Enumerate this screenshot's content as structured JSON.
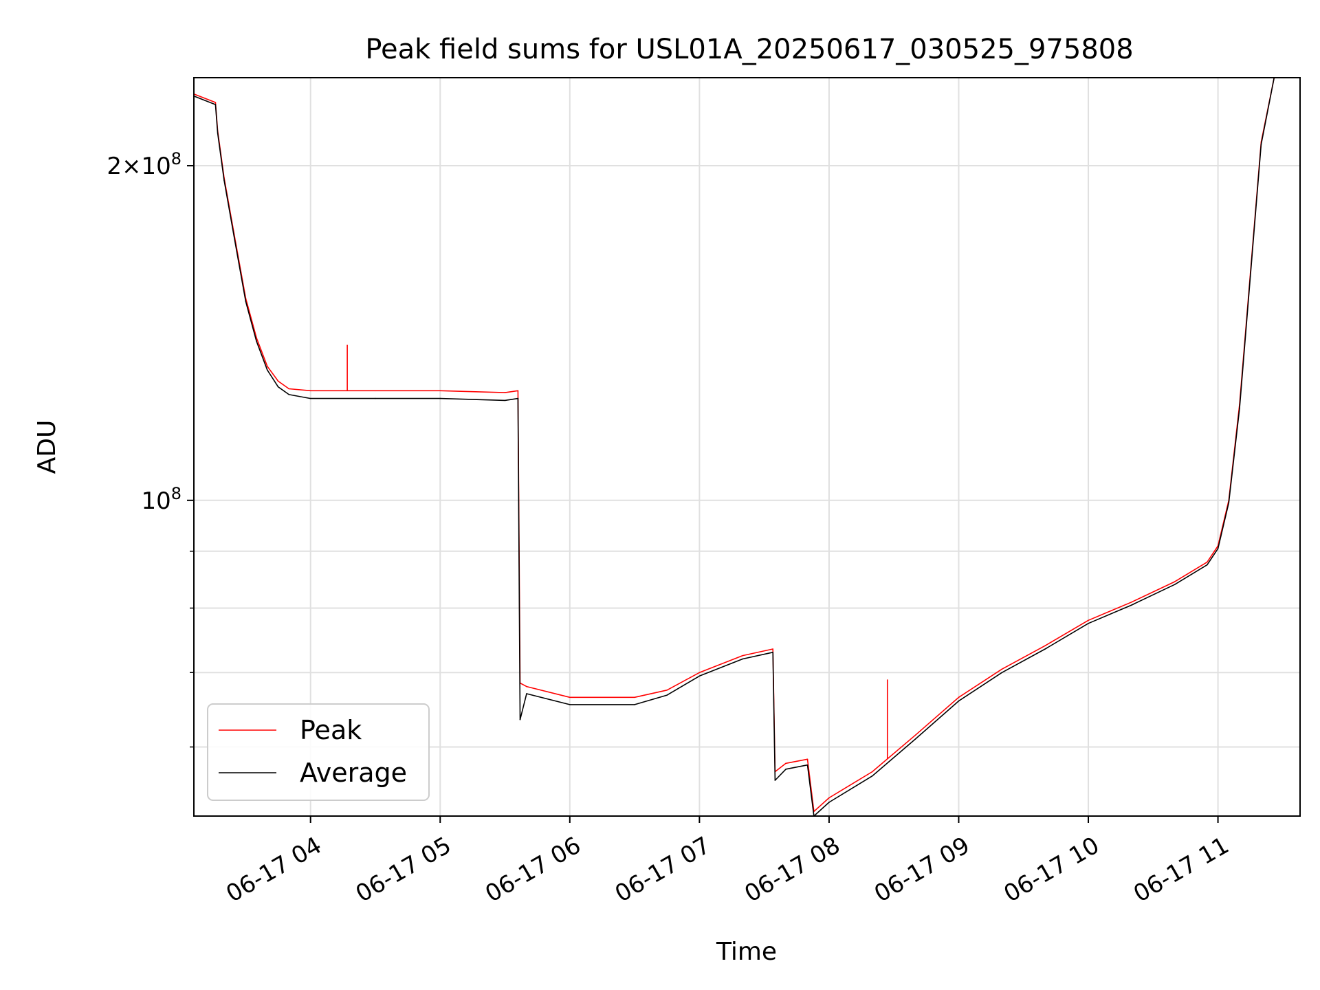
{
  "chart_data": {
    "type": "line",
    "title": "Peak field sums for USL01A_20250617_030525_975808",
    "xlabel": "Time",
    "ylabel": "ADU",
    "y_scale": "log",
    "ylim": [
      52000000,
      240000000
    ],
    "xlim": [
      "2025-06-17 03:06",
      "2025-06-17 11:38"
    ],
    "grid": true,
    "legend_position": "lower-left",
    "x_ticks": [
      {
        "t": "2025-06-17 04:00",
        "label": "06-17 04"
      },
      {
        "t": "2025-06-17 05:00",
        "label": "06-17 05"
      },
      {
        "t": "2025-06-17 06:00",
        "label": "06-17 06"
      },
      {
        "t": "2025-06-17 07:00",
        "label": "06-17 07"
      },
      {
        "t": "2025-06-17 08:00",
        "label": "06-17 08"
      },
      {
        "t": "2025-06-17 09:00",
        "label": "06-17 09"
      },
      {
        "t": "2025-06-17 10:00",
        "label": "06-17 10"
      },
      {
        "t": "2025-06-17 11:00",
        "label": "06-17 11"
      }
    ],
    "y_major_ticks": [
      {
        "value": 100000000,
        "base": "10",
        "exp": "8",
        "mult": ""
      },
      {
        "value": 200000000,
        "base": "10",
        "exp": "8",
        "mult": "2"
      }
    ],
    "y_minor_ticks": [
      60000000,
      70000000,
      80000000,
      90000000
    ],
    "series": [
      {
        "name": "Peak",
        "color": "#ff0000",
        "x": [
          "2025-06-17 03:06",
          "2025-06-17 03:16",
          "2025-06-17 03:17",
          "2025-06-17 03:20",
          "2025-06-17 03:25",
          "2025-06-17 03:30",
          "2025-06-17 03:35",
          "2025-06-17 03:40",
          "2025-06-17 03:45",
          "2025-06-17 03:50",
          "2025-06-17 04:00",
          "2025-06-17 04:30",
          "2025-06-17 05:00",
          "2025-06-17 05:30",
          "2025-06-17 05:36",
          "2025-06-17 05:37",
          "2025-06-17 05:40",
          "2025-06-17 06:00",
          "2025-06-17 06:30",
          "2025-06-17 06:45",
          "2025-06-17 07:00",
          "2025-06-17 07:20",
          "2025-06-17 07:34",
          "2025-06-17 07:35",
          "2025-06-17 07:40",
          "2025-06-17 07:50",
          "2025-06-17 07:53",
          "2025-06-17 08:00",
          "2025-06-17 08:20",
          "2025-06-17 08:40",
          "2025-06-17 09:00",
          "2025-06-17 09:20",
          "2025-06-17 09:40",
          "2025-06-17 10:00",
          "2025-06-17 10:20",
          "2025-06-17 10:40",
          "2025-06-17 10:55",
          "2025-06-17 11:00",
          "2025-06-17 11:05",
          "2025-06-17 11:10",
          "2025-06-17 11:15",
          "2025-06-17 11:20",
          "2025-06-17 11:26"
        ],
        "y": [
          232000000,
          228000000,
          215000000,
          195000000,
          172000000,
          152000000,
          140000000,
          132000000,
          128000000,
          126000000,
          125500000,
          125500000,
          125500000,
          125000000,
          125500000,
          68500000,
          68000000,
          66500000,
          66500000,
          67500000,
          70000000,
          72500000,
          73500000,
          57000000,
          58000000,
          58500000,
          52500000,
          54000000,
          57000000,
          61500000,
          66500000,
          70500000,
          74000000,
          78000000,
          81000000,
          84500000,
          88000000,
          91000000,
          100000000,
          122000000,
          160000000,
          210000000,
          240000000
        ]
      },
      {
        "name": "Average",
        "color": "#000000",
        "x": [
          "2025-06-17 03:06",
          "2025-06-17 03:16",
          "2025-06-17 03:17",
          "2025-06-17 03:20",
          "2025-06-17 03:25",
          "2025-06-17 03:30",
          "2025-06-17 03:35",
          "2025-06-17 03:40",
          "2025-06-17 03:45",
          "2025-06-17 03:50",
          "2025-06-17 04:00",
          "2025-06-17 04:30",
          "2025-06-17 05:00",
          "2025-06-17 05:30",
          "2025-06-17 05:36",
          "2025-06-17 05:37",
          "2025-06-17 05:40",
          "2025-06-17 06:00",
          "2025-06-17 06:30",
          "2025-06-17 06:45",
          "2025-06-17 07:00",
          "2025-06-17 07:20",
          "2025-06-17 07:34",
          "2025-06-17 07:35",
          "2025-06-17 07:40",
          "2025-06-17 07:50",
          "2025-06-17 07:53",
          "2025-06-17 08:00",
          "2025-06-17 08:20",
          "2025-06-17 08:40",
          "2025-06-17 09:00",
          "2025-06-17 09:20",
          "2025-06-17 09:40",
          "2025-06-17 10:00",
          "2025-06-17 10:20",
          "2025-06-17 10:40",
          "2025-06-17 10:55",
          "2025-06-17 11:00",
          "2025-06-17 11:05",
          "2025-06-17 11:10",
          "2025-06-17 11:15",
          "2025-06-17 11:20",
          "2025-06-17 11:26"
        ],
        "y": [
          231000000,
          227000000,
          214000000,
          194000000,
          171000000,
          151000000,
          139000000,
          131000000,
          126500000,
          124500000,
          123500000,
          123500000,
          123500000,
          123000000,
          123500000,
          63500000,
          67000000,
          65500000,
          65500000,
          66800000,
          69500000,
          72000000,
          73000000,
          56000000,
          57300000,
          57800000,
          52000000,
          53500000,
          56500000,
          61000000,
          66000000,
          70000000,
          73500000,
          77500000,
          80500000,
          84000000,
          87500000,
          90500000,
          99500000,
          121000000,
          159000000,
          209000000,
          240000000
        ]
      }
    ],
    "annotations": [
      {
        "series": "Peak",
        "t": "2025-06-17 04:17",
        "value": 138000000
      },
      {
        "series": "Peak",
        "t": "2025-06-17 08:27",
        "value": 69000000
      }
    ]
  }
}
